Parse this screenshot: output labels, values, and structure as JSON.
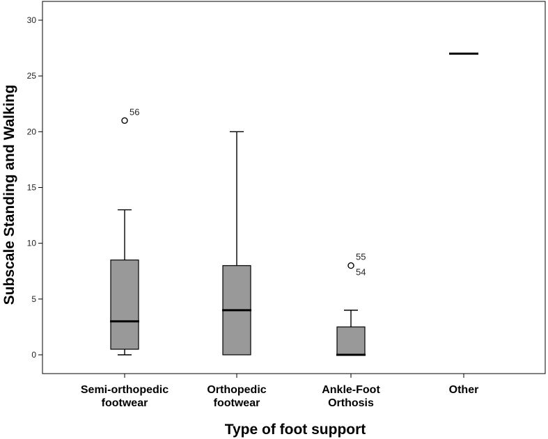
{
  "chart_data": {
    "type": "box",
    "xlabel": "Type of foot support",
    "ylabel": "Subscale Standing and Walking",
    "ylim": [
      0,
      30
    ],
    "yticks": [
      0,
      5,
      10,
      15,
      20,
      25,
      30
    ],
    "grid": false,
    "legend": "none",
    "box_color": "#999999",
    "categories": [
      {
        "label_lines": [
          "Semi-orthopedic",
          "footwear"
        ],
        "min": 0,
        "q1": 0.5,
        "median": 3,
        "q3": 8.5,
        "max": 13,
        "outliers": [
          {
            "value": 21,
            "id": "56"
          }
        ]
      },
      {
        "label_lines": [
          "Orthopedic",
          "footwear"
        ],
        "min": 0,
        "q1": 0,
        "median": 4,
        "q3": 8,
        "max": 20,
        "outliers": []
      },
      {
        "label_lines": [
          "Ankle-Foot",
          "Orthosis"
        ],
        "min": 0,
        "q1": 0,
        "median": 0,
        "q3": 2.5,
        "max": 4,
        "outliers": [
          {
            "value": 8,
            "id": "55"
          },
          {
            "value": 8,
            "id": "54"
          }
        ]
      },
      {
        "label_lines": [
          "Other"
        ],
        "min": 27,
        "q1": 27,
        "median": 27,
        "q3": 27,
        "max": 27,
        "outliers": []
      }
    ]
  }
}
